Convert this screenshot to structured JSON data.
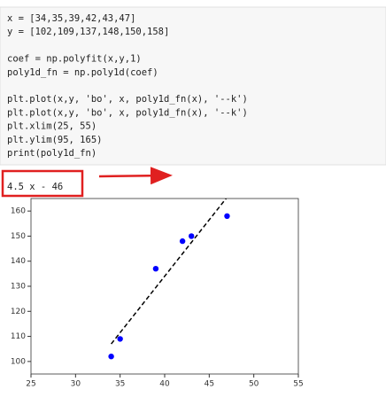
{
  "code_cell": {
    "blocks": [
      [
        "x = [34,35,39,42,43,47]",
        "y = [102,109,137,148,150,158]"
      ],
      [
        "coef = np.polyfit(x,y,1)",
        "poly1d_fn = np.poly1d(coef)"
      ],
      [
        "plt.plot(x,y, 'bo', x, poly1d_fn(x), '--k')",
        "plt.plot(x,y, 'bo', x, poly1d_fn(x), '--k')",
        "plt.xlim(25, 55)",
        "plt.ylim(95, 165)",
        "print(poly1d_fn)"
      ]
    ]
  },
  "output": {
    "text": "4.5 x - 46"
  },
  "chart_data": {
    "type": "scatter",
    "series": [
      {
        "style": "points",
        "color": "#0000ff",
        "x": [
          34,
          35,
          39,
          42,
          43,
          47
        ],
        "values": [
          102,
          109,
          137,
          148,
          150,
          158
        ]
      },
      {
        "style": "dashed-line",
        "color": "#000000",
        "x": [
          34,
          35,
          39,
          42,
          43,
          47
        ],
        "values": [
          107,
          111.5,
          129.5,
          143,
          147.5,
          165.5
        ]
      }
    ],
    "xlim": [
      25,
      55
    ],
    "xticks": [
      25,
      30,
      35,
      40,
      45,
      50,
      55
    ],
    "ylim": [
      95,
      165
    ],
    "yticks": [
      100,
      110,
      120,
      130,
      140,
      150,
      160
    ],
    "grid": false
  }
}
